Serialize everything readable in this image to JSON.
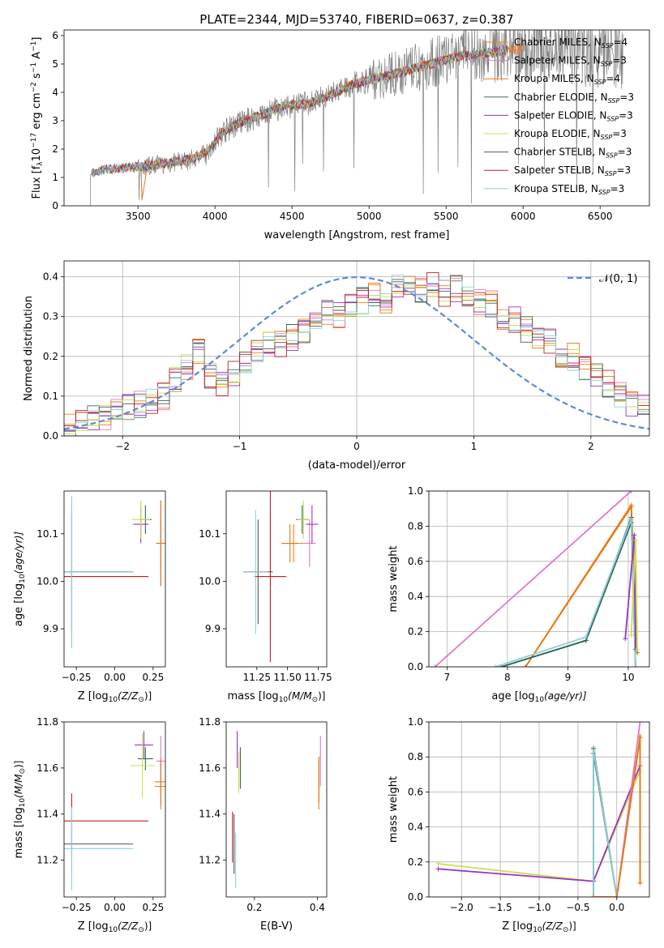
{
  "figure": {
    "title": "PLATE=2344, MJD=53740, FIBERID=0637, z=0.387"
  },
  "colors": {
    "chabrier_miles": "#ff7f0e",
    "salpeter_miles": "#e377c2",
    "kroupa_miles": "#e07b1a",
    "chabrier_elodie": "#2f6b5a",
    "salpeter_elodie": "#9b30c9",
    "kroupa_elodie": "#c8e04a",
    "chabrier_stelib": "#555555",
    "salpeter_stelib": "#c0201e",
    "kroupa_stelib": "#8ecfd8",
    "data": "#808080",
    "normal": "#5b8bd9",
    "grid": "#b0b0b0"
  },
  "legend": [
    {
      "name": "Chabrier MILES, N",
      "sub": "SSP",
      "tail": "=4",
      "color_key": "chabrier_miles"
    },
    {
      "name": "Salpeter MILES, N",
      "sub": "SSP",
      "tail": "=3",
      "color_key": "salpeter_miles"
    },
    {
      "name": "Kroupa MILES, N",
      "sub": "SSP",
      "tail": "=4",
      "color_key": "kroupa_miles"
    },
    {
      "name": "Chabrier ELODIE, N",
      "sub": "SSP",
      "tail": "=3",
      "color_key": "chabrier_elodie"
    },
    {
      "name": "Salpeter ELODIE, N",
      "sub": "SSP",
      "tail": "=3",
      "color_key": "salpeter_elodie"
    },
    {
      "name": "Kroupa ELODIE, N",
      "sub": "SSP",
      "tail": "=3",
      "color_key": "kroupa_elodie"
    },
    {
      "name": "Chabrier STELIB, N",
      "sub": "SSP",
      "tail": "=3",
      "color_key": "chabrier_stelib"
    },
    {
      "name": "Salpeter STELIB, N",
      "sub": "SSP",
      "tail": "=3",
      "color_key": "salpeter_stelib"
    },
    {
      "name": "Kroupa STELIB, N",
      "sub": "SSP",
      "tail": "=3",
      "color_key": "kroupa_stelib"
    }
  ],
  "chart_data": [
    {
      "id": "spectrum",
      "type": "line",
      "xlabel": "wavelength [Angstrom, rest frame]",
      "ylabel": "Flux [f",
      "ylabel_parts": {
        "sub": "λ",
        "mid": "10",
        "exp1": "−17",
        "unit": " erg cm",
        "exp2": "−2",
        "s": " s",
        "exp3": "−1",
        "A": " A",
        "exp4": "−1",
        "close": "]"
      },
      "xlim": [
        3020,
        6820
      ],
      "ylim": [
        0,
        6.2
      ],
      "xticks": [
        "3500",
        "4000",
        "4500",
        "5000",
        "5500",
        "6000",
        "6500"
      ],
      "xtick_values": [
        3500,
        4000,
        4500,
        5000,
        5500,
        6000,
        6500
      ],
      "yticks": [
        "0",
        "1",
        "2",
        "3",
        "4",
        "5",
        "6"
      ],
      "ytick_values": [
        0,
        1,
        2,
        3,
        4,
        5,
        6
      ],
      "grid": false,
      "legend_position": "upper-right",
      "continuum": {
        "x": [
          3200,
          3300,
          3450,
          3550,
          3700,
          3850,
          3950,
          4050,
          4150,
          4300,
          4450,
          4600,
          4750,
          4900,
          5050,
          5200,
          5400,
          5600,
          5800,
          5900
        ],
        "y": [
          1.15,
          1.3,
          1.35,
          1.4,
          1.5,
          1.65,
          1.9,
          2.6,
          2.9,
          3.2,
          3.5,
          3.6,
          3.9,
          4.3,
          4.5,
          4.7,
          5.0,
          5.3,
          5.4,
          5.5
        ]
      },
      "data_range": [
        3190,
        6650
      ]
    },
    {
      "id": "residuals",
      "type": "histogram",
      "xlabel": "(data-model)/error",
      "ylabel": "Normed distribution",
      "xlim": [
        -2.5,
        2.5
      ],
      "ylim": [
        0,
        0.44
      ],
      "xticks": [
        "−2",
        "−1",
        "0",
        "1",
        "2"
      ],
      "xtick_values": [
        -2,
        -1,
        0,
        1,
        2
      ],
      "yticks": [
        "0.0",
        "0.1",
        "0.2",
        "0.3",
        "0.4"
      ],
      "ytick_values": [
        0,
        0.1,
        0.2,
        0.3,
        0.4
      ],
      "grid": true,
      "legend_label": "𝒩(0, 1)",
      "bin_width": 0.1,
      "hist_base": [
        0.02,
        0.03,
        0.05,
        0.05,
        0.06,
        0.07,
        0.08,
        0.09,
        0.1,
        0.14,
        0.17,
        0.21,
        0.15,
        0.13,
        0.16,
        0.18,
        0.21,
        0.24,
        0.23,
        0.25,
        0.26,
        0.28,
        0.31,
        0.3,
        0.33,
        0.34,
        0.35,
        0.34,
        0.37,
        0.38,
        0.37,
        0.38,
        0.36,
        0.37,
        0.35,
        0.34,
        0.33,
        0.3,
        0.29,
        0.27,
        0.24,
        0.24,
        0.2,
        0.2,
        0.17,
        0.15,
        0.13,
        0.1,
        0.08,
        0.07
      ]
    },
    {
      "id": "age-vs-Z",
      "type": "errorbar",
      "xlabel": "Z [log",
      "xlabel_parts": {
        "sub": "10",
        "rest": "(Z/Z",
        "sun": "⊙",
        "close": ")]"
      },
      "ylabel": "age  [log",
      "ylabel_parts": {
        "sub": "10",
        "rest": "(age/yr)]"
      },
      "xlim": [
        -0.33,
        0.33
      ],
      "ylim": [
        9.82,
        10.19
      ],
      "xticks": [
        "−0.25",
        "0.00",
        "0.25"
      ],
      "xtick_values": [
        -0.25,
        0,
        0.25
      ],
      "yticks": [
        "9.9",
        "10.0",
        "10.1"
      ],
      "ytick_values": [
        9.9,
        10.0,
        10.1
      ],
      "points": [
        {
          "key": "chabrier_miles",
          "x": 0.3,
          "y": 10.08,
          "xe": 0.03,
          "ye": 0.09
        },
        {
          "key": "salpeter_miles",
          "x": 0.3,
          "y": 10.08,
          "xe": 0.03,
          "ye": 0.05
        },
        {
          "key": "kroupa_miles",
          "x": 0.3,
          "y": 10.08,
          "xe": 0.03,
          "ye": 0.09
        },
        {
          "key": "chabrier_elodie",
          "x": 0.2,
          "y": 10.13,
          "xe": 0.04,
          "ye": 0.03
        },
        {
          "key": "salpeter_elodie",
          "x": 0.17,
          "y": 10.12,
          "xe": 0.05,
          "ye": 0.04
        },
        {
          "key": "kroupa_elodie",
          "x": 0.17,
          "y": 10.13,
          "xe": 0.06,
          "ye": 0.04
        },
        {
          "key": "chabrier_stelib",
          "x": -0.28,
          "y": 10.02,
          "xe": 0.4,
          "ye": 0.12
        },
        {
          "key": "salpeter_stelib",
          "x": -0.28,
          "y": 10.01,
          "xe": 0.5,
          "ye": 0.15
        },
        {
          "key": "kroupa_stelib",
          "x": -0.28,
          "y": 10.02,
          "xe": 0.4,
          "ye": 0.16
        }
      ]
    },
    {
      "id": "age-vs-mass",
      "type": "errorbar",
      "xlabel": "mass [log",
      "xlabel_parts": {
        "sub": "10",
        "rest": "(M/M",
        "sun": "⊙",
        "close": ")]"
      },
      "xlim": [
        11.0,
        11.82
      ],
      "ylim": [
        9.82,
        10.19
      ],
      "xticks": [
        "11.25",
        "11.50",
        "11.75"
      ],
      "xtick_values": [
        11.25,
        11.5,
        11.75
      ],
      "yticks": [
        "9.9",
        "10.0",
        "10.1"
      ],
      "ytick_values": [
        9.9,
        10.0,
        10.1
      ],
      "points": [
        {
          "key": "chabrier_miles",
          "x": 11.55,
          "y": 10.08,
          "xe": 0.08,
          "ye": 0.04
        },
        {
          "key": "salpeter_miles",
          "x": 11.68,
          "y": 10.08,
          "xe": 0.05,
          "ye": 0.05
        },
        {
          "key": "kroupa_miles",
          "x": 11.52,
          "y": 10.08,
          "xe": 0.07,
          "ye": 0.04
        },
        {
          "key": "chabrier_elodie",
          "x": 11.62,
          "y": 10.13,
          "xe": 0.05,
          "ye": 0.03
        },
        {
          "key": "salpeter_elodie",
          "x": 11.7,
          "y": 10.12,
          "xe": 0.05,
          "ye": 0.04
        },
        {
          "key": "kroupa_elodie",
          "x": 11.63,
          "y": 10.13,
          "xe": 0.05,
          "ye": 0.04
        },
        {
          "key": "chabrier_stelib",
          "x": 11.26,
          "y": 10.02,
          "xe": 0.12,
          "ye": 0.11
        },
        {
          "key": "salpeter_stelib",
          "x": 11.36,
          "y": 10.01,
          "xe": 0.13,
          "ye": 0.18
        },
        {
          "key": "kroupa_stelib",
          "x": 11.24,
          "y": 10.02,
          "xe": 0.1,
          "ye": 0.13
        }
      ]
    },
    {
      "id": "weight-vs-age",
      "type": "line",
      "xlabel": "age  [log",
      "xlabel_parts": {
        "sub": "10",
        "rest": "(age/yr)]"
      },
      "ylabel": "mass weight",
      "xlim": [
        6.7,
        10.35
      ],
      "ylim": [
        0,
        1
      ],
      "xticks": [
        "7",
        "8",
        "9",
        "10"
      ],
      "xtick_values": [
        7,
        8,
        9,
        10
      ],
      "yticks": [
        "0.0",
        "0.2",
        "0.4",
        "0.6",
        "0.8",
        "1.0"
      ],
      "ytick_values": [
        0,
        0.2,
        0.4,
        0.6,
        0.8,
        1.0
      ],
      "grid": true,
      "series": [
        {
          "key": "salpeter_miles",
          "x": [
            6.8,
            10.05
          ],
          "y": [
            0.0,
            1.0
          ]
        },
        {
          "key": "chabrier_miles",
          "x": [
            8.3,
            10.05,
            10.15
          ],
          "y": [
            0.0,
            0.92,
            0.08
          ]
        },
        {
          "key": "kroupa_miles",
          "x": [
            8.3,
            10.05,
            10.15
          ],
          "y": [
            0.0,
            0.91,
            0.08
          ]
        },
        {
          "key": "chabrier_stelib",
          "x": [
            7.9,
            9.3,
            10.05,
            10.12
          ],
          "y": [
            0.0,
            0.15,
            0.85,
            0.0
          ]
        },
        {
          "key": "chabrier_elodie",
          "x": [
            7.9,
            9.3,
            10.05,
            10.12
          ],
          "y": [
            0.0,
            0.15,
            0.82,
            0.0
          ]
        },
        {
          "key": "kroupa_stelib",
          "x": [
            7.8,
            9.3,
            10.05,
            10.12
          ],
          "y": [
            0.0,
            0.17,
            0.84,
            0.0
          ]
        },
        {
          "key": "salpeter_elodie",
          "x": [
            9.95,
            10.1,
            10.12
          ],
          "y": [
            0.16,
            0.75,
            0.1
          ]
        },
        {
          "key": "kroupa_elodie",
          "x": [
            10.05,
            10.12,
            10.15
          ],
          "y": [
            0.18,
            0.72,
            0.1
          ]
        }
      ]
    },
    {
      "id": "mass-vs-Z",
      "type": "errorbar",
      "xlabel": "Z [log",
      "xlabel_parts": {
        "sub": "10",
        "rest": "(Z/Z",
        "sun": "⊙",
        "close": ")]"
      },
      "ylabel": "mass [log",
      "ylabel_parts": {
        "sub": "10",
        "rest": "(M/M",
        "sun": "⊙",
        "close": ")]"
      },
      "xlim": [
        -0.33,
        0.33
      ],
      "ylim": [
        11.04,
        11.8
      ],
      "xticks": [
        "−0.25",
        "0.00",
        "0.25"
      ],
      "xtick_values": [
        -0.25,
        0,
        0.25
      ],
      "yticks": [
        "11.2",
        "11.4",
        "11.6",
        "11.8"
      ],
      "ytick_values": [
        11.2,
        11.4,
        11.6,
        11.8
      ],
      "points": [
        {
          "key": "chabrier_miles",
          "x": 0.3,
          "y": 11.52,
          "xe": 0.04,
          "ye": 0.1
        },
        {
          "key": "salpeter_miles",
          "x": 0.3,
          "y": 11.63,
          "xe": 0.03,
          "ye": 0.11
        },
        {
          "key": "kroupa_miles",
          "x": 0.3,
          "y": 11.54,
          "xe": 0.04,
          "ye": 0.1
        },
        {
          "key": "chabrier_elodie",
          "x": 0.2,
          "y": 11.64,
          "xe": 0.05,
          "ye": 0.05
        },
        {
          "key": "salpeter_elodie",
          "x": 0.19,
          "y": 11.7,
          "xe": 0.06,
          "ye": 0.06
        },
        {
          "key": "kroupa_elodie",
          "x": 0.18,
          "y": 11.61,
          "xe": 0.08,
          "ye": 0.14
        },
        {
          "key": "chabrier_stelib",
          "x": -0.28,
          "y": 11.27,
          "xe": 0.4,
          "ye": 0.13
        },
        {
          "key": "salpeter_stelib",
          "x": -0.28,
          "y": 11.37,
          "xe": 0.5,
          "ye": 0.12
        },
        {
          "key": "kroupa_stelib",
          "x": -0.28,
          "y": 11.25,
          "xe": 0.4,
          "ye": 0.18
        }
      ]
    },
    {
      "id": "mass-vs-ebv",
      "type": "errorbar",
      "xlabel": "E(B-V)",
      "xlim": [
        0.11,
        0.43
      ],
      "ylim": [
        11.04,
        11.8
      ],
      "xticks": [
        "0.2",
        "0.4"
      ],
      "xtick_values": [
        0.2,
        0.4
      ],
      "yticks": [
        "11.2",
        "11.4",
        "11.6",
        "11.8"
      ],
      "ytick_values": [
        11.2,
        11.4,
        11.6,
        11.8
      ],
      "points": [
        {
          "key": "chabrier_miles",
          "x": 0.405,
          "y": 11.53,
          "xe": 0.0,
          "ye": 0.11
        },
        {
          "key": "salpeter_miles",
          "x": 0.41,
          "y": 11.63,
          "xe": 0.0,
          "ye": 0.11
        },
        {
          "key": "kroupa_miles",
          "x": 0.405,
          "y": 11.55,
          "xe": 0.0,
          "ye": 0.1
        },
        {
          "key": "chabrier_elodie",
          "x": 0.155,
          "y": 11.6,
          "xe": 0.0,
          "ye": 0.09
        },
        {
          "key": "salpeter_elodie",
          "x": 0.145,
          "y": 11.68,
          "xe": 0.0,
          "ye": 0.08
        },
        {
          "key": "kroupa_elodie",
          "x": 0.15,
          "y": 11.58,
          "xe": 0.0,
          "ye": 0.09
        },
        {
          "key": "chabrier_stelib",
          "x": 0.135,
          "y": 11.27,
          "xe": 0.0,
          "ye": 0.13
        },
        {
          "key": "salpeter_stelib",
          "x": 0.13,
          "y": 11.3,
          "xe": 0.0,
          "ye": 0.11
        },
        {
          "key": "kroupa_stelib",
          "x": 0.14,
          "y": 11.2,
          "xe": 0.0,
          "ye": 0.12
        }
      ]
    },
    {
      "id": "weight-vs-Z",
      "type": "line",
      "xlabel": "Z [log",
      "xlabel_parts": {
        "sub": "10",
        "rest": "(Z/Z",
        "sun": "⊙",
        "close": ")]"
      },
      "ylabel": "mass weight",
      "xlim": [
        -2.42,
        0.42
      ],
      "ylim": [
        0,
        1
      ],
      "xticks": [
        "−2.0",
        "−1.5",
        "−1.0",
        "−0.5",
        "0.0"
      ],
      "xtick_values": [
        -2.0,
        -1.5,
        -1.0,
        -0.5,
        0.0
      ],
      "yticks": [
        "0.0",
        "0.2",
        "0.4",
        "0.6",
        "0.8",
        "1.0"
      ],
      "ytick_values": [
        0,
        0.2,
        0.4,
        0.6,
        0.8,
        1.0
      ],
      "grid": true,
      "series": [
        {
          "key": "kroupa_elodie",
          "x": [
            -2.3,
            -0.3,
            0.3
          ],
          "y": [
            0.19,
            0.09,
            0.72
          ]
        },
        {
          "key": "salpeter_elodie",
          "x": [
            -2.3,
            -0.3,
            0.3
          ],
          "y": [
            0.16,
            0.09,
            0.75
          ]
        },
        {
          "key": "chabrier_stelib",
          "x": [
            -0.3,
            -0.3,
            0.0
          ],
          "y": [
            0.0,
            0.85,
            0.0
          ]
        },
        {
          "key": "chabrier_elodie",
          "x": [
            -0.3,
            -0.3,
            0.0
          ],
          "y": [
            0.0,
            0.82,
            0.0
          ]
        },
        {
          "key": "kroupa_stelib",
          "x": [
            -0.3,
            -0.3,
            0.0
          ],
          "y": [
            0.0,
            0.84,
            0.0
          ]
        },
        {
          "key": "salpeter_miles",
          "x": [
            0.0,
            0.3
          ],
          "y": [
            0.0,
            1.0
          ]
        },
        {
          "key": "chabrier_miles",
          "x": [
            -0.3,
            0.0,
            0.3,
            0.3
          ],
          "y": [
            0.0,
            0.0,
            0.92,
            0.08
          ]
        },
        {
          "key": "kroupa_miles",
          "x": [
            0.0,
            0.3,
            0.3
          ],
          "y": [
            0.0,
            0.91,
            0.08
          ]
        }
      ]
    }
  ]
}
